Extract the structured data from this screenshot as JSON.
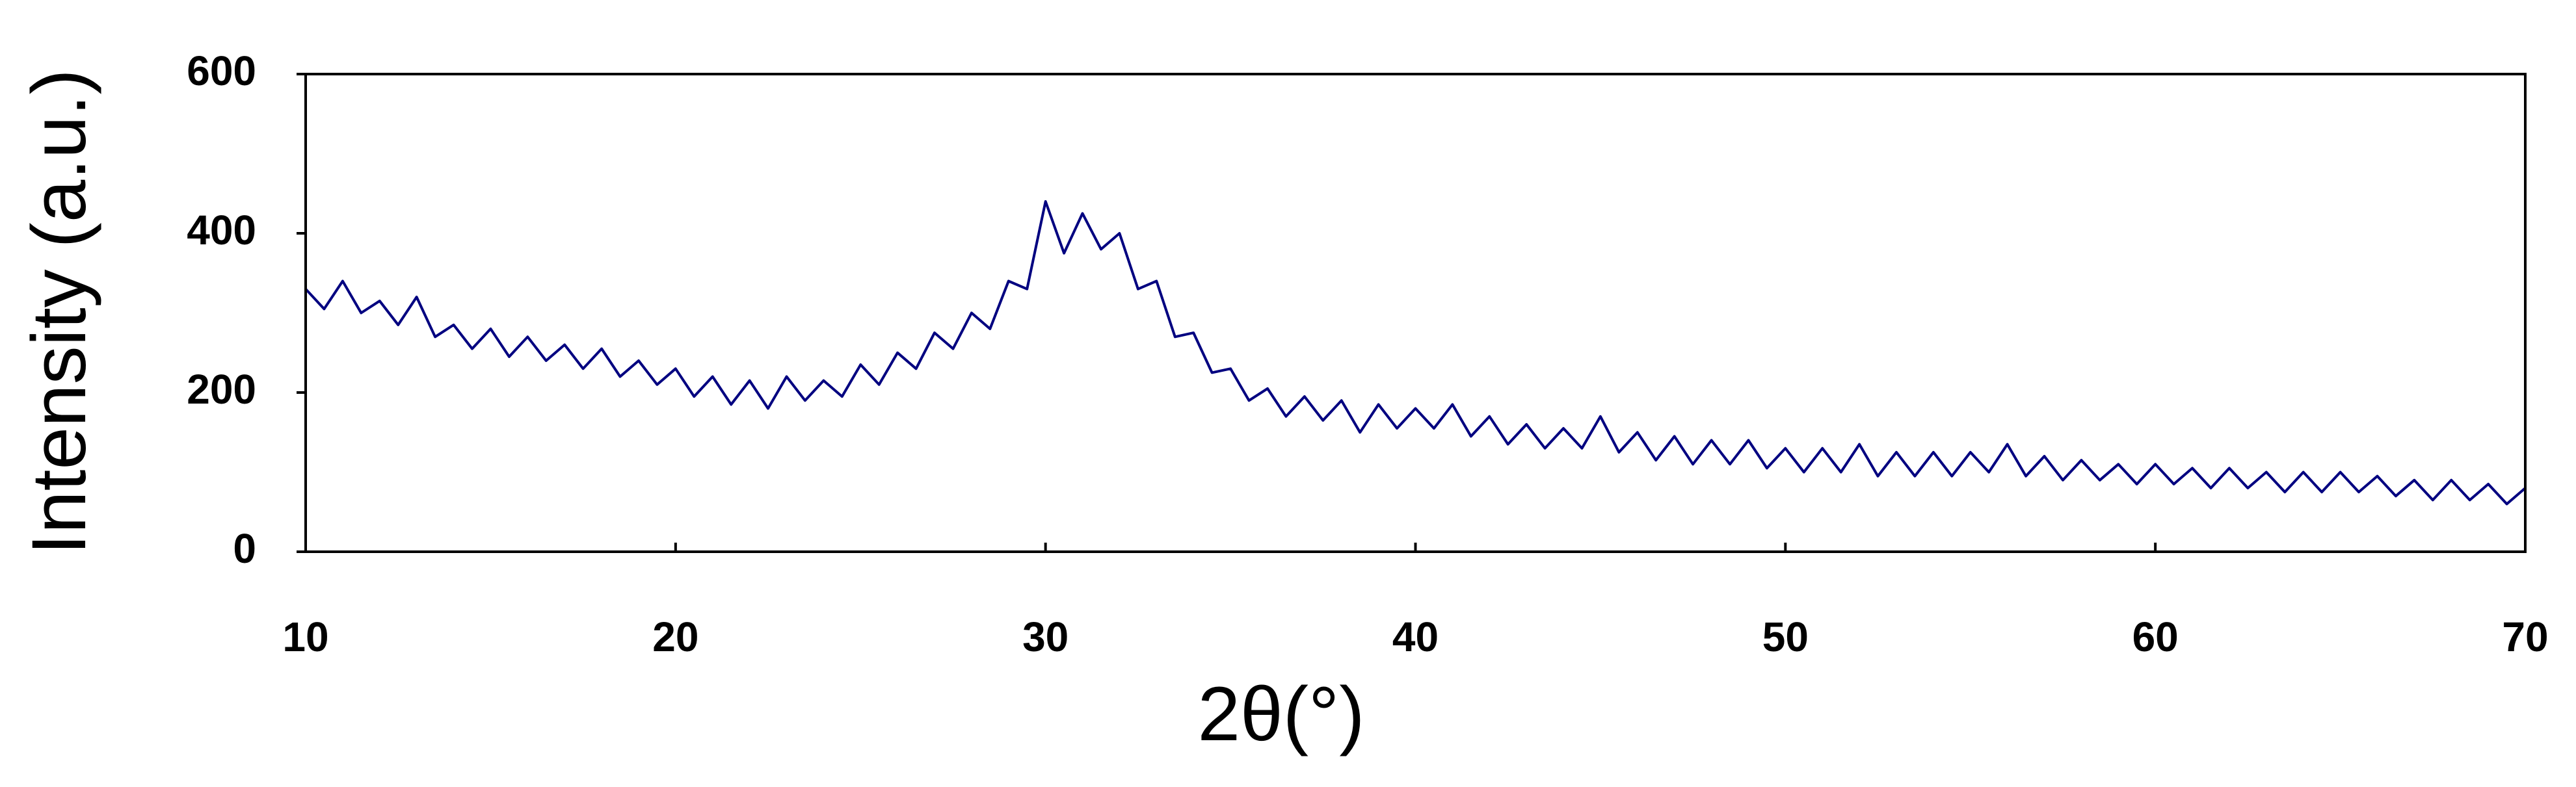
{
  "chart_data": {
    "type": "line",
    "xlabel": "2θ(°)",
    "ylabel": "Intensity (a.u.)",
    "color": "#000080",
    "x": [
      10,
      10.5,
      11,
      11.5,
      12,
      12.5,
      13,
      13.5,
      14,
      14.5,
      15,
      15.5,
      16,
      16.5,
      17,
      17.5,
      18,
      18.5,
      19,
      19.5,
      20,
      20.5,
      21,
      21.5,
      22,
      22.5,
      23,
      23.5,
      24,
      24.5,
      25,
      25.5,
      26,
      26.5,
      27,
      27.5,
      28,
      28.5,
      29,
      29.5,
      30,
      30.5,
      31,
      31.5,
      32,
      32.5,
      33,
      33.5,
      34,
      34.5,
      35,
      35.5,
      36,
      36.5,
      37,
      37.5,
      38,
      38.5,
      39,
      39.5,
      40,
      40.5,
      41,
      41.5,
      42,
      42.5,
      43,
      43.5,
      44,
      44.5,
      45,
      45.5,
      46,
      46.5,
      47,
      47.5,
      48,
      48.5,
      49,
      49.5,
      50,
      50.5,
      51,
      51.5,
      52,
      52.5,
      53,
      53.5,
      54,
      54.5,
      55,
      55.5,
      56,
      56.5,
      57,
      57.5,
      58,
      58.5,
      59,
      59.5,
      60,
      60.5,
      61,
      61.5,
      62,
      62.5,
      63,
      63.5,
      64,
      64.5,
      65,
      65.5,
      66,
      66.5,
      67,
      67.5,
      68,
      68.5,
      69,
      69.5,
      70
    ],
    "values": [
      330,
      305,
      340,
      300,
      315,
      285,
      320,
      270,
      285,
      255,
      280,
      245,
      270,
      240,
      260,
      230,
      255,
      220,
      240,
      210,
      230,
      195,
      220,
      185,
      215,
      180,
      220,
      190,
      215,
      195,
      235,
      210,
      250,
      230,
      275,
      255,
      300,
      280,
      340,
      330,
      440,
      375,
      425,
      380,
      400,
      330,
      340,
      270,
      275,
      225,
      230,
      190,
      205,
      170,
      195,
      165,
      190,
      150,
      185,
      155,
      180,
      155,
      185,
      145,
      170,
      135,
      160,
      130,
      155,
      130,
      170,
      125,
      150,
      115,
      145,
      110,
      140,
      110,
      140,
      105,
      130,
      100,
      130,
      100,
      135,
      95,
      125,
      95,
      125,
      95,
      125,
      100,
      135,
      95,
      120,
      90,
      115,
      90,
      110,
      85,
      110,
      85,
      105,
      80,
      105,
      80,
      100,
      75,
      100,
      75,
      100,
      75,
      95,
      70,
      90,
      65,
      90,
      65,
      85,
      60,
      80
    ],
    "xlim": [
      10,
      70
    ],
    "xticks": [
      10,
      20,
      30,
      40,
      50,
      60,
      70
    ],
    "ylim": [
      0,
      600
    ],
    "yticks": [
      0,
      200,
      400,
      600
    ]
  }
}
